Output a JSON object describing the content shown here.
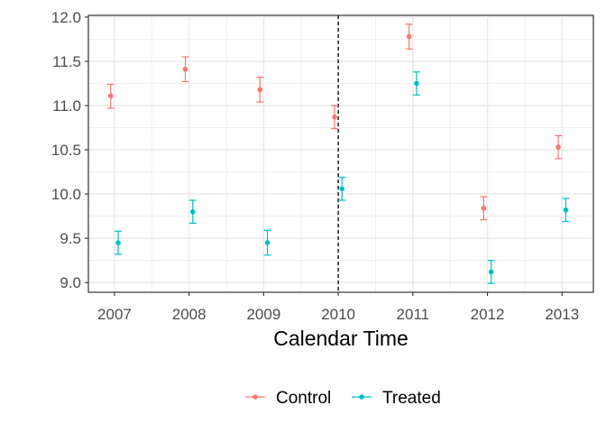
{
  "chart_data": {
    "type": "scatter",
    "xlabel": "Calendar Time",
    "ylabel": "",
    "x_ticks": [
      "2007",
      "2008",
      "2009",
      "2010",
      "2011",
      "2012",
      "2013"
    ],
    "y_ticks": [
      "9.0",
      "9.5",
      "10.0",
      "10.5",
      "11.0",
      "11.5",
      "12.0"
    ],
    "xlim": [
      2006.65,
      2013.42
    ],
    "ylim": [
      8.89,
      12.02
    ],
    "grid": true,
    "reference_line_x": 2010,
    "legend_position": "bottom",
    "series": [
      {
        "name": "Control",
        "color": "#F8766D",
        "x": [
          2007,
          2008,
          2009,
          2010,
          2011,
          2012,
          2013
        ],
        "y": [
          11.11,
          11.41,
          11.18,
          10.87,
          11.78,
          9.84,
          10.53
        ],
        "ymin": [
          10.97,
          11.27,
          11.04,
          10.74,
          11.64,
          9.71,
          10.4
        ],
        "ymax": [
          11.24,
          11.55,
          11.32,
          11.0,
          11.92,
          9.97,
          10.66
        ]
      },
      {
        "name": "Treated",
        "color": "#00BFC4",
        "x": [
          2007,
          2008,
          2009,
          2010,
          2011,
          2012,
          2013
        ],
        "y": [
          9.45,
          9.8,
          9.45,
          10.06,
          11.25,
          9.12,
          9.82
        ],
        "ymin": [
          9.32,
          9.67,
          9.31,
          9.93,
          11.12,
          8.99,
          9.69
        ],
        "ymax": [
          9.58,
          9.93,
          9.59,
          10.19,
          11.38,
          9.25,
          9.95
        ]
      }
    ]
  }
}
